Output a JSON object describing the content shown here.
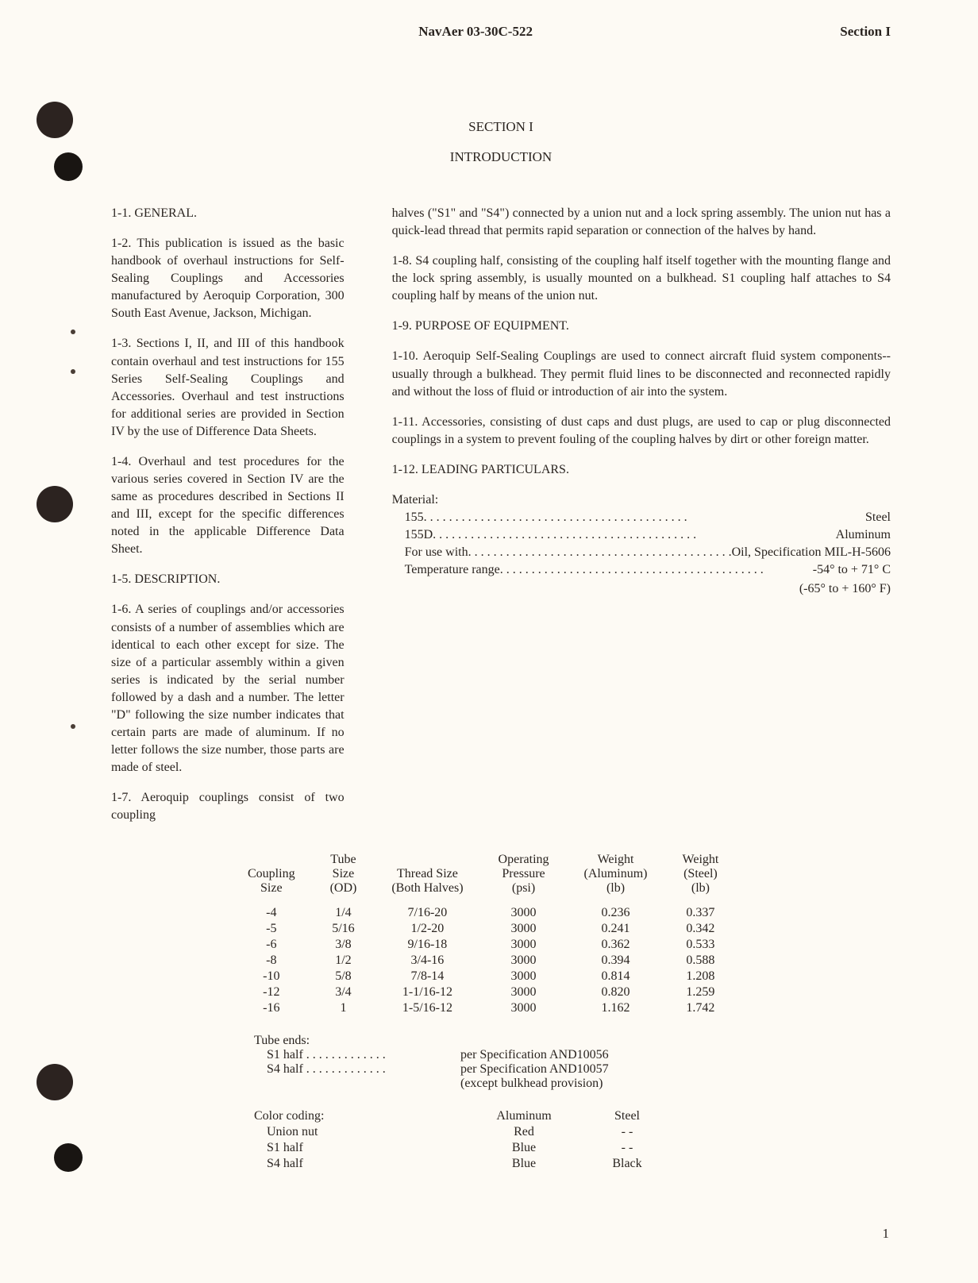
{
  "header": {
    "left": "NavAer 03-30C-522",
    "right": "Section I"
  },
  "section_title": "SECTION I",
  "intro_title": "INTRODUCTION",
  "left_col": {
    "p1": "1-1.  GENERAL.",
    "p2": "1-2.  This publication is issued as the basic handbook of overhaul instructions for Self-Sealing Couplings and Accessories manufactured by Aeroquip Corporation, 300 South East Avenue, Jackson, Michigan.",
    "p3": "1-3.  Sections I, II, and III of this handbook contain overhaul and test instructions for 155 Series Self-Sealing Couplings and Accessories.  Overhaul and test instructions for additional series are provided in Section IV by the use of Difference Data Sheets.",
    "p4": "1-4.  Overhaul and test procedures for the various series covered in Section IV are the same as procedures described in Sections II and III, except for the specific differences noted in the applicable Difference Data Sheet.",
    "p5": "1-5.  DESCRIPTION.",
    "p6": "1-6.  A series of couplings and/or accessories consists of a number of assemblies which are identical to each other except for size.  The size of a particular assembly within a given series is indicated by the serial number followed by a dash and a number.  The letter \"D\" following the size number indicates that certain parts are made of aluminum.  If no letter follows the size number, those parts are made of steel.",
    "p7": "1-7.  Aeroquip  couplings  consist  of  two  coupling"
  },
  "right_col": {
    "p1": "halves (\"S1\" and \"S4\") connected by a union nut and a lock spring assembly.  The union nut has a quick-lead thread that permits rapid separation or connection of the halves by hand.",
    "p2": "1-8.  S4 coupling half, consisting of the coupling half itself together with the mounting flange and the lock spring assembly, is usually mounted on a bulkhead. S1 coupling half attaches to S4 coupling half by means of the union nut.",
    "p3": "1-9.  PURPOSE OF EQUIPMENT.",
    "p4": "1-10.  Aeroquip Self-Sealing Couplings are used to connect aircraft fluid system components--usually through a bulkhead.  They permit fluid lines to be disconnected and reconnected rapidly and without the loss of fluid or introduction of air into the system.",
    "p5": "1-11.  Accessories, consisting of dust caps and dust plugs, are used to cap or plug disconnected couplings in a system to prevent fouling of the coupling halves by dirt or other foreign matter.",
    "p6": "1-12.  LEADING PARTICULARS.",
    "material_label": "Material:",
    "mat1_l": "155",
    "mat1_r": "Steel",
    "mat2_l": "155D",
    "mat2_r": "Aluminum",
    "mat3_l": "For use with",
    "mat3_r": "Oil, Specification MIL-H-5606",
    "mat4_l": "Temperature range",
    "mat4_r": "-54° to + 71° C",
    "mat5": "(-65° to + 160° F)"
  },
  "spec_table": {
    "headers": [
      "Coupling\nSize",
      "Tube\nSize\n(OD)",
      "Thread Size\n(Both Halves)",
      "Operating\nPressure\n(psi)",
      "Weight\n(Aluminum)\n(lb)",
      "Weight\n(Steel)\n(lb)"
    ],
    "rows": [
      [
        "-4",
        "1/4",
        "7/16-20",
        "3000",
        "0.236",
        "0.337"
      ],
      [
        "-5",
        "5/16",
        "1/2-20",
        "3000",
        "0.241",
        "0.342"
      ],
      [
        "-6",
        "3/8",
        "9/16-18",
        "3000",
        "0.362",
        "0.533"
      ],
      [
        "-8",
        "1/2",
        "3/4-16",
        "3000",
        "0.394",
        "0.588"
      ],
      [
        "-10",
        "5/8",
        "7/8-14",
        "3000",
        "0.814",
        "1.208"
      ],
      [
        "-12",
        "3/4",
        "1-1/16-12",
        "3000",
        "0.820",
        "1.259"
      ],
      [
        "-16",
        "1",
        "1-5/16-12",
        "3000",
        "1.162",
        "1.742"
      ]
    ]
  },
  "tube_ends": {
    "label": "Tube ends:",
    "r1_l": "S1 half  . . . . . . . . . . . . .",
    "r1_r": "per Specification AND10056",
    "r2_l": "S4 half  . . . . . . . . . . . . .",
    "r2_r": "per Specification AND10057",
    "r3": "(except bulkhead provision)"
  },
  "color_coding": {
    "label": "Color coding:",
    "headers": [
      "",
      "Aluminum",
      "Steel"
    ],
    "rows": [
      [
        "Union nut",
        "Red",
        "- -"
      ],
      [
        "S1 half",
        "Blue",
        "- -"
      ],
      [
        "S4 half",
        "Blue",
        "Black"
      ]
    ]
  },
  "page_number": "1"
}
